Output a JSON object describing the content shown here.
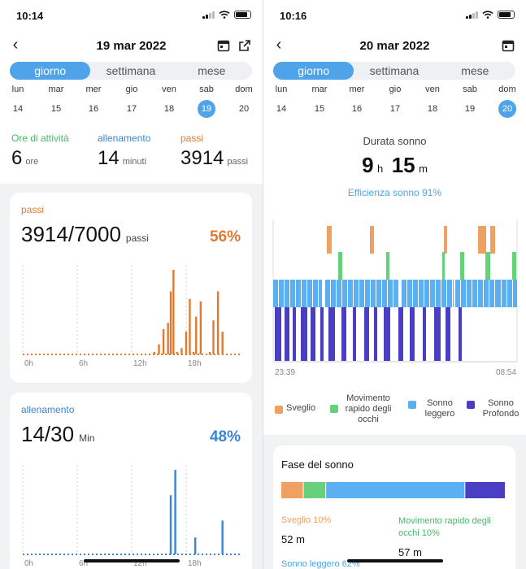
{
  "left": {
    "status": {
      "time": "10:14"
    },
    "header": {
      "title": "19 mar 2022"
    },
    "tabs": [
      {
        "label": "giorno",
        "active": true
      },
      {
        "label": "settimana",
        "active": false
      },
      {
        "label": "mese",
        "active": false
      }
    ],
    "week": {
      "days": [
        "lun",
        "mar",
        "mer",
        "gio",
        "ven",
        "sab",
        "dom"
      ],
      "dates": [
        "14",
        "15",
        "16",
        "17",
        "18",
        "19",
        "20"
      ],
      "selected_index": 5
    },
    "stats": [
      {
        "label": "Ore di attività",
        "value": "6",
        "unit": "ore",
        "color": "#44bb66"
      },
      {
        "label": "allenamento",
        "value": "14",
        "unit": "minuti",
        "color": "#3a86d6"
      },
      {
        "label": "passi",
        "value": "3914",
        "unit": "passi",
        "color": "#e07a30"
      }
    ],
    "steps_card": {
      "label": "passi",
      "value": "3914/7000",
      "unit": "passi",
      "percent": "56%",
      "color": "#e07a30",
      "chart_data": {
        "type": "bar",
        "x_ticks": [
          "0h",
          "6h",
          "12h",
          "18h"
        ],
        "x_range_hours": [
          0,
          24
        ],
        "hours": [
          14.5,
          15.0,
          15.5,
          16.0,
          16.3,
          16.6,
          17.0,
          17.5,
          18.0,
          18.4,
          18.8,
          19.1,
          19.6,
          20.6,
          21.0,
          21.5,
          22.0
        ],
        "values": [
          2,
          8,
          20,
          25,
          50,
          67,
          2,
          5,
          18,
          44,
          2,
          30,
          42,
          2,
          27,
          50,
          18
        ]
      }
    },
    "workout_card": {
      "label": "allenamento",
      "value": "14/30",
      "unit": "Min",
      "percent": "48%",
      "color": "#3a86d6",
      "chart_data": {
        "type": "bar",
        "x_ticks": [
          "0h",
          "6h",
          "12h",
          "18h"
        ],
        "x_range_hours": [
          0,
          24
        ],
        "hours": [
          16.3,
          16.8,
          19.0,
          22.0
        ],
        "values": [
          70,
          100,
          20,
          40
        ]
      }
    }
  },
  "right": {
    "status": {
      "time": "10:16"
    },
    "header": {
      "title": "20 mar 2022"
    },
    "tabs": [
      {
        "label": "giorno",
        "active": true
      },
      {
        "label": "settimana",
        "active": false
      },
      {
        "label": "mese",
        "active": false
      }
    ],
    "week": {
      "days": [
        "lun",
        "mar",
        "mer",
        "gio",
        "ven",
        "sab",
        "dom"
      ],
      "dates": [
        "14",
        "15",
        "16",
        "17",
        "18",
        "19",
        "20"
      ],
      "selected_index": 6
    },
    "sleep": {
      "duration_label": "Durata sonno",
      "hours": "9",
      "h_unit": "h",
      "minutes": "15",
      "m_unit": "m",
      "efficiency": "Efficienza sonno 91%",
      "start": "23:39",
      "end": "08:54"
    },
    "legend": [
      {
        "label": "Sveglio",
        "color": "#f0a060"
      },
      {
        "label": "Movimento rapido degli occhi",
        "color": "#66d07a"
      },
      {
        "label": "Sonno leggero",
        "color": "#5ab0f0"
      },
      {
        "label": "Sonno Profondo",
        "color": "#4a3fc4"
      }
    ],
    "phase": {
      "title": "Fase del sonno",
      "bar": [
        10,
        10,
        62,
        18
      ],
      "awake": {
        "label": "Sveglio 10%",
        "value": "52 m"
      },
      "rem": {
        "label": "Movimento rapido degli occhi 10%",
        "value": "57 m"
      },
      "light": {
        "label": "Sonno leggero 62%"
      }
    }
  }
}
